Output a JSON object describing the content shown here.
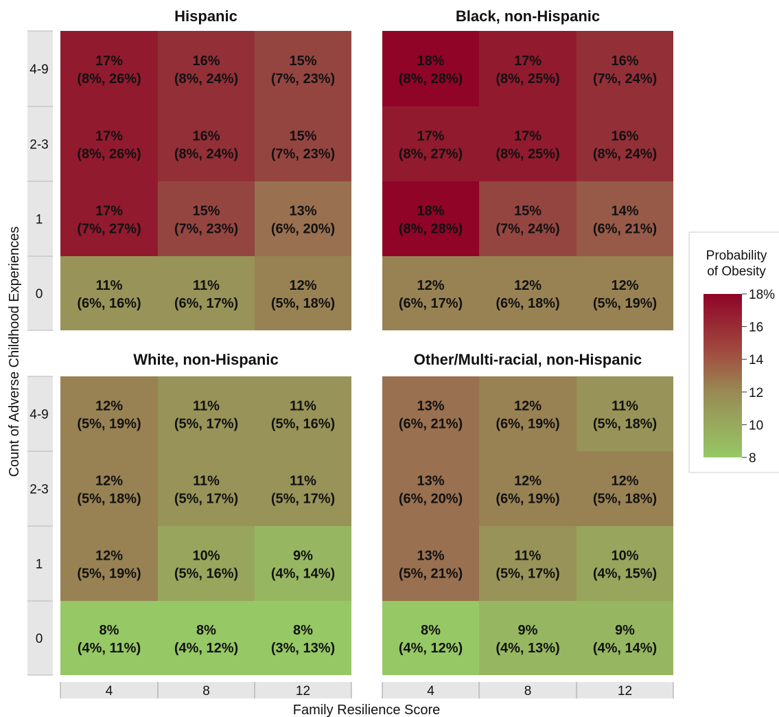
{
  "chart_data": {
    "type": "heatmap",
    "xlabel": "Family Resilience Score",
    "ylabel": "Count of Adverse Childhood Experiences",
    "x_categories": [
      "4",
      "8",
      "12"
    ],
    "y_categories": [
      "0",
      "1",
      "2-3",
      "4-9"
    ],
    "legend": {
      "title_lines": [
        "Probability",
        "of Obesity"
      ],
      "placement": "right",
      "min": 8,
      "max": 18,
      "ticks": [
        {
          "value": 8,
          "label": "8"
        },
        {
          "value": 10,
          "label": "10"
        },
        {
          "value": 12,
          "label": "12"
        },
        {
          "value": 14,
          "label": "14"
        },
        {
          "value": 16,
          "label": "16"
        },
        {
          "value": 18,
          "label": "18%"
        }
      ],
      "color_low": "#96c865",
      "color_mid": "#997050",
      "color_high": "#8f0427"
    },
    "panels": [
      {
        "title": "Hispanic",
        "rows": [
          {
            "ace": "4-9",
            "cells": [
              {
                "value": 17,
                "label": "17%",
                "ci": "(8%, 26%)"
              },
              {
                "value": 16,
                "label": "16%",
                "ci": "(8%, 24%)"
              },
              {
                "value": 15,
                "label": "15%",
                "ci": "(7%, 23%)"
              }
            ]
          },
          {
            "ace": "2-3",
            "cells": [
              {
                "value": 17,
                "label": "17%",
                "ci": "(8%, 26%)"
              },
              {
                "value": 16,
                "label": "16%",
                "ci": "(8%, 24%)"
              },
              {
                "value": 15,
                "label": "15%",
                "ci": "(7%, 23%)"
              }
            ]
          },
          {
            "ace": "1",
            "cells": [
              {
                "value": 17,
                "label": "17%",
                "ci": "(7%, 27%)"
              },
              {
                "value": 15,
                "label": "15%",
                "ci": "(7%, 23%)"
              },
              {
                "value": 13,
                "label": "13%",
                "ci": "(6%, 20%)"
              }
            ]
          },
          {
            "ace": "0",
            "cells": [
              {
                "value": 11,
                "label": "11%",
                "ci": "(6%, 16%)"
              },
              {
                "value": 11,
                "label": "11%",
                "ci": "(6%, 17%)"
              },
              {
                "value": 12,
                "label": "12%",
                "ci": "(5%, 18%)"
              }
            ]
          }
        ]
      },
      {
        "title": "Black, non-Hispanic",
        "rows": [
          {
            "ace": "4-9",
            "cells": [
              {
                "value": 18,
                "label": "18%",
                "ci": "(8%, 28%)"
              },
              {
                "value": 17,
                "label": "17%",
                "ci": "(8%, 25%)"
              },
              {
                "value": 16,
                "label": "16%",
                "ci": "(7%, 24%)"
              }
            ]
          },
          {
            "ace": "2-3",
            "cells": [
              {
                "value": 17,
                "label": "17%",
                "ci": "(8%, 27%)"
              },
              {
                "value": 17,
                "label": "17%",
                "ci": "(8%, 25%)"
              },
              {
                "value": 16,
                "label": "16%",
                "ci": "(8%, 24%)"
              }
            ]
          },
          {
            "ace": "1",
            "cells": [
              {
                "value": 18,
                "label": "18%",
                "ci": "(8%, 28%)"
              },
              {
                "value": 15,
                "label": "15%",
                "ci": "(7%, 24%)"
              },
              {
                "value": 14,
                "label": "14%",
                "ci": "(6%, 21%)"
              }
            ]
          },
          {
            "ace": "0",
            "cells": [
              {
                "value": 12,
                "label": "12%",
                "ci": "(6%, 17%)"
              },
              {
                "value": 12,
                "label": "12%",
                "ci": "(6%, 18%)"
              },
              {
                "value": 12,
                "label": "12%",
                "ci": "(5%, 19%)"
              }
            ]
          }
        ]
      },
      {
        "title": "White, non-Hispanic",
        "rows": [
          {
            "ace": "4-9",
            "cells": [
              {
                "value": 12,
                "label": "12%",
                "ci": "(5%, 19%)"
              },
              {
                "value": 11,
                "label": "11%",
                "ci": "(5%, 17%)"
              },
              {
                "value": 11,
                "label": "11%",
                "ci": "(5%, 16%)"
              }
            ]
          },
          {
            "ace": "2-3",
            "cells": [
              {
                "value": 12,
                "label": "12%",
                "ci": "(5%, 18%)"
              },
              {
                "value": 11,
                "label": "11%",
                "ci": "(5%, 17%)"
              },
              {
                "value": 11,
                "label": "11%",
                "ci": "(5%, 17%)"
              }
            ]
          },
          {
            "ace": "1",
            "cells": [
              {
                "value": 12,
                "label": "12%",
                "ci": "(5%, 19%)"
              },
              {
                "value": 10,
                "label": "10%",
                "ci": "(5%, 16%)"
              },
              {
                "value": 9,
                "label": "9%",
                "ci": "(4%, 14%)"
              }
            ]
          },
          {
            "ace": "0",
            "cells": [
              {
                "value": 8,
                "label": "8%",
                "ci": "(4%, 11%)"
              },
              {
                "value": 8,
                "label": "8%",
                "ci": "(4%, 12%)"
              },
              {
                "value": 8,
                "label": "8%",
                "ci": "(3%, 13%)"
              }
            ]
          }
        ]
      },
      {
        "title": "Other/Multi-racial, non-Hispanic",
        "rows": [
          {
            "ace": "4-9",
            "cells": [
              {
                "value": 13,
                "label": "13%",
                "ci": "(6%, 21%)"
              },
              {
                "value": 12,
                "label": "12%",
                "ci": "(6%, 19%)"
              },
              {
                "value": 11,
                "label": "11%",
                "ci": "(5%, 18%)"
              }
            ]
          },
          {
            "ace": "2-3",
            "cells": [
              {
                "value": 13,
                "label": "13%",
                "ci": "(6%, 20%)"
              },
              {
                "value": 12,
                "label": "12%",
                "ci": "(6%, 19%)"
              },
              {
                "value": 12,
                "label": "12%",
                "ci": "(5%, 18%)"
              }
            ]
          },
          {
            "ace": "1",
            "cells": [
              {
                "value": 13,
                "label": "13%",
                "ci": "(5%, 21%)"
              },
              {
                "value": 11,
                "label": "11%",
                "ci": "(5%, 17%)"
              },
              {
                "value": 10,
                "label": "10%",
                "ci": "(4%, 15%)"
              }
            ]
          },
          {
            "ace": "0",
            "cells": [
              {
                "value": 8,
                "label": "8%",
                "ci": "(4%, 12%)"
              },
              {
                "value": 9,
                "label": "9%",
                "ci": "(4%, 13%)"
              },
              {
                "value": 9,
                "label": "9%",
                "ci": "(4%, 14%)"
              }
            ]
          }
        ]
      }
    ]
  }
}
